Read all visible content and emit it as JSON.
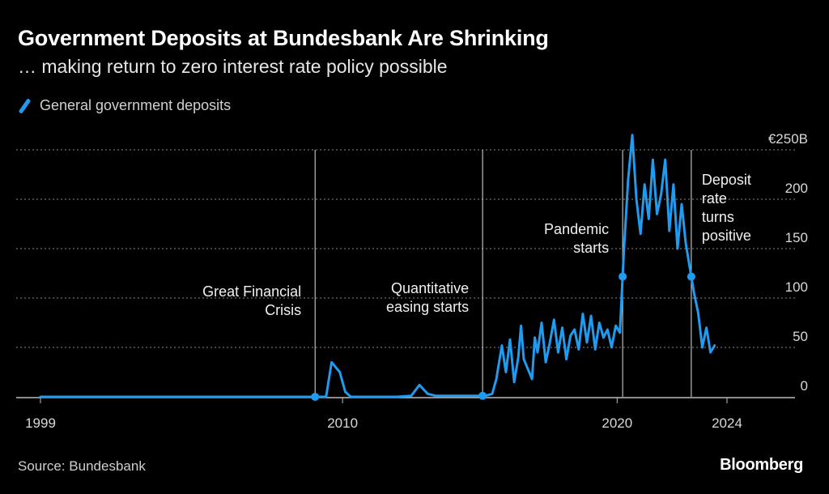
{
  "header": {
    "title": "Government Deposits at Bundesbank Are Shrinking",
    "subtitle": "… making return to zero interest rate policy possible"
  },
  "legend": {
    "label": "General government deposits",
    "color": "#1f9bf0"
  },
  "footer": {
    "source": "Source: Bundesbank",
    "logo": "Bloomberg"
  },
  "chart_data": {
    "type": "line",
    "title": "Government Deposits at Bundesbank Are Shrinking",
    "subtitle": "… making return to zero interest rate policy possible",
    "xlabel": "",
    "ylabel": "",
    "xlim": [
      1999.0,
      2026.0
    ],
    "ylim": [
      0,
      250
    ],
    "x_ticks": [
      "1999",
      "2010",
      "2020",
      "2024"
    ],
    "y_ticks": [
      "€250B",
      "200",
      "150",
      "100",
      "50",
      "0"
    ],
    "y_tick_values": [
      250,
      200,
      150,
      100,
      50,
      0
    ],
    "grid": "horizontal dotted",
    "legend_position": "top-left",
    "series": [
      {
        "name": "General government deposits",
        "color": "#1f9bf0",
        "x": [
          1999.0,
          2005.0,
          2008.5,
          2009.4,
          2009.6,
          2009.9,
          2010.1,
          2010.3,
          2010.5,
          2011.0,
          2012.0,
          2012.5,
          2012.8,
          2013.1,
          2013.4,
          2013.8,
          2014.2,
          2014.8,
          2015.2,
          2015.45,
          2015.6,
          2015.8,
          2015.95,
          2016.1,
          2016.25,
          2016.4,
          2016.5,
          2016.6,
          2016.75,
          2016.9,
          2017.0,
          2017.1,
          2017.25,
          2017.4,
          2017.55,
          2017.7,
          2017.85,
          2018.0,
          2018.15,
          2018.3,
          2018.45,
          2018.6,
          2018.75,
          2018.9,
          2019.05,
          2019.2,
          2019.35,
          2019.5,
          2019.65,
          2019.8,
          2019.95,
          2020.1,
          2020.25,
          2020.4,
          2020.55,
          2020.7,
          2020.85,
          2021.0,
          2021.15,
          2021.3,
          2021.45,
          2021.6,
          2021.75,
          2021.9,
          2022.05,
          2022.2,
          2022.35,
          2022.5,
          2022.65,
          2022.8,
          2022.95,
          2023.1,
          2023.25,
          2023.4,
          2023.55
        ],
        "values": [
          0,
          0,
          0,
          0,
          35,
          25,
          5,
          0,
          0,
          0,
          0,
          1,
          12,
          3,
          1,
          1,
          1,
          1,
          1,
          3,
          18,
          52,
          25,
          58,
          15,
          40,
          72,
          38,
          28,
          18,
          60,
          45,
          75,
          35,
          55,
          78,
          45,
          70,
          38,
          62,
          68,
          48,
          84,
          55,
          82,
          48,
          75,
          60,
          68,
          50,
          72,
          65,
          150,
          220,
          265,
          200,
          165,
          215,
          180,
          240,
          185,
          205,
          240,
          168,
          215,
          150,
          195,
          155,
          130,
          105,
          85,
          50,
          70,
          45,
          52
        ]
      }
    ],
    "annotations": [
      {
        "x": 2009.0,
        "text": [
          "Great Financial",
          "Crisis"
        ]
      },
      {
        "x": 2015.1,
        "text": [
          "Quantitative",
          "easing starts"
        ]
      },
      {
        "x": 2020.2,
        "text": [
          "Pandemic",
          "starts"
        ]
      },
      {
        "x": 2022.7,
        "text": [
          "Deposit",
          "rate",
          "turns",
          "positive"
        ]
      }
    ]
  }
}
